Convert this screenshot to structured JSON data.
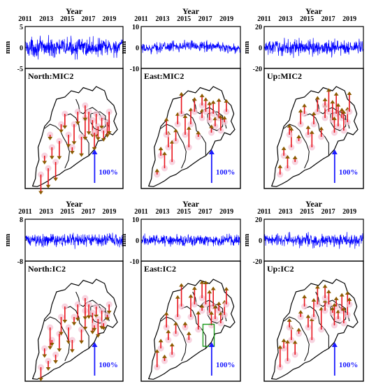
{
  "figure": {
    "x_axis_title": "Year",
    "y_axis_title": "mm",
    "x_ticks": [
      "2011",
      "2013",
      "2015",
      "2017",
      "2019"
    ],
    "scale_arrow_label": "100%"
  },
  "chart_data": [
    {
      "type": "line",
      "row": 1,
      "map_label": "North:MIC2",
      "ylim": [
        -5,
        5
      ],
      "y_ticks": [
        "5",
        "0",
        "-5"
      ],
      "xlim": [
        2011,
        2020.3
      ],
      "noise_amplitude_mm": 2.4,
      "arrow_direction": "down",
      "annotations": [
        "map of vectors",
        "scale arrow 100%"
      ]
    },
    {
      "type": "line",
      "row": 1,
      "map_label": "East:MIC2",
      "ylim": [
        -10,
        10
      ],
      "y_ticks": [
        "10",
        "0",
        "-10"
      ],
      "xlim": [
        2011,
        2020.3
      ],
      "noise_amplitude_mm": 2.6,
      "trend": "arched",
      "arrow_direction": "up"
    },
    {
      "type": "line",
      "row": 1,
      "map_label": "Up:MIC2",
      "ylim": [
        -20,
        20
      ],
      "y_ticks": [
        "20",
        "0",
        "-20"
      ],
      "xlim": [
        2011,
        2020.3
      ],
      "noise_amplitude_mm": 8,
      "arrow_direction": "up"
    },
    {
      "type": "line",
      "row": 2,
      "map_label": "North:IC2",
      "ylim": [
        -8,
        8
      ],
      "y_ticks": [
        "8",
        "",
        "-8"
      ],
      "xlim": [
        2011,
        2020.3
      ],
      "noise_amplitude_mm": 2.6,
      "arrow_direction": "down"
    },
    {
      "type": "line",
      "row": 2,
      "map_label": "East:IC2",
      "ylim": [
        -10,
        10
      ],
      "y_ticks": [
        "10",
        "0",
        "-10"
      ],
      "xlim": [
        2011,
        2020.3
      ],
      "noise_amplitude_mm": 2.8,
      "arrow_direction": "up",
      "highlight_box": true
    },
    {
      "type": "line",
      "row": 2,
      "map_label": "Up:IC2",
      "ylim": [
        -20,
        20
      ],
      "y_ticks": [
        "20",
        "0",
        "-20"
      ],
      "xlim": [
        2011,
        2020.3
      ],
      "noise_amplitude_mm": 7,
      "arrow_direction": "up"
    }
  ],
  "colors": {
    "series": "#0000ff",
    "vector": "#e8141c",
    "vector_head": "#8b5a00",
    "halo": "#f4c6d6",
    "scale": "#1a1aff",
    "box": "#1a9a1a"
  }
}
